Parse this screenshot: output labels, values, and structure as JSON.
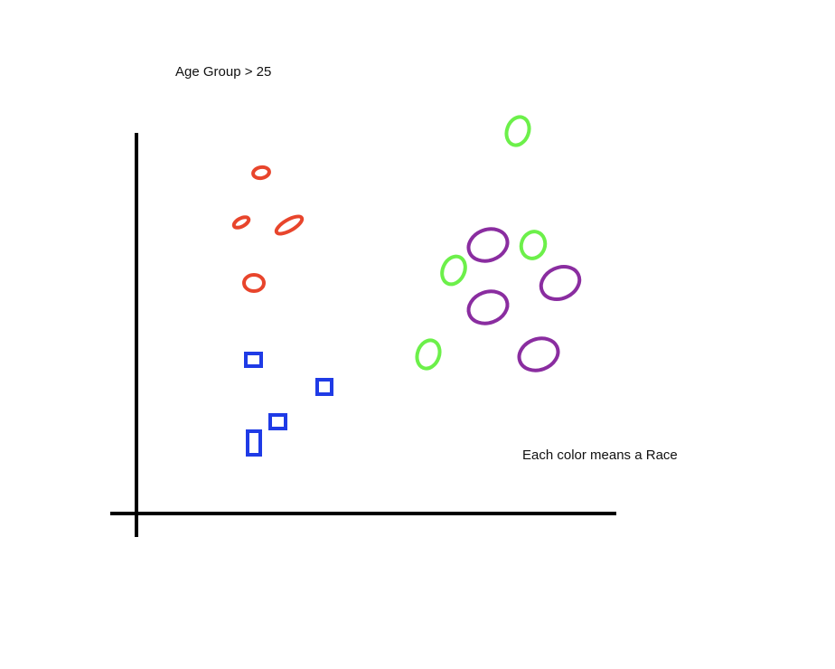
{
  "texts": {
    "title": "Age Group > 25",
    "note": "Each color means a Race"
  },
  "colors": {
    "axis": "#000000",
    "red": "#e8452c",
    "blue": "#1f3be6",
    "green": "#6cf04a",
    "purple": "#8a2da0"
  },
  "groups": [
    {
      "color_key": "red",
      "shape": "ellipse",
      "count": 4
    },
    {
      "color_key": "blue",
      "shape": "square",
      "count": 4
    },
    {
      "color_key": "green",
      "shape": "ellipse",
      "count": 4
    },
    {
      "color_key": "purple",
      "shape": "ellipse",
      "count": 4
    }
  ]
}
